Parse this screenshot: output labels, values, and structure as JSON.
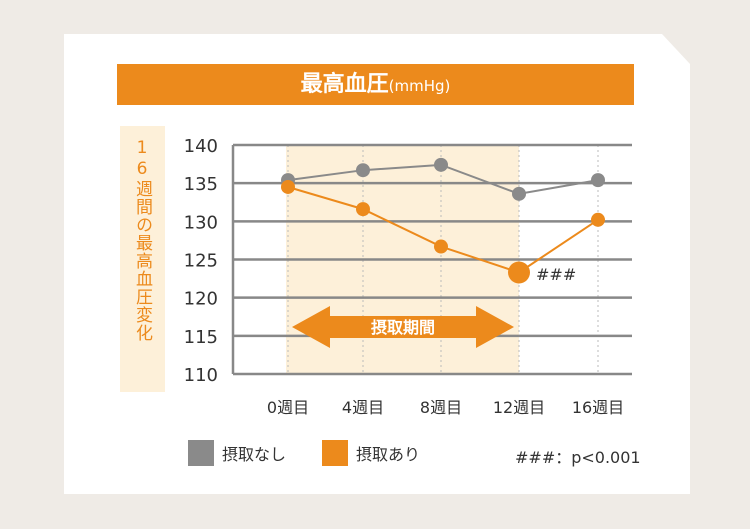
{
  "chart_data": {
    "type": "line",
    "title": "最高血圧",
    "title_unit": "(mmHg)",
    "ylabel": "16週間の最高血圧変化",
    "categories": [
      "0週目",
      "4週目",
      "8週目",
      "12週目",
      "16週目"
    ],
    "yticks": [
      140,
      135,
      130,
      125,
      120,
      115,
      110
    ],
    "ylim": [
      110,
      140
    ],
    "series": [
      {
        "name": "摂取なし",
        "color": "#8a8a8a",
        "values": [
          135.4,
          136.7,
          137.4,
          133.6,
          135.4
        ]
      },
      {
        "name": "摂取あり",
        "color": "#ec8a1c",
        "values": [
          134.5,
          131.6,
          126.7,
          123.3,
          130.2
        ]
      }
    ],
    "shaded_period_label": "摂取期間",
    "annotation": "###",
    "note": "###：p<0.001"
  }
}
